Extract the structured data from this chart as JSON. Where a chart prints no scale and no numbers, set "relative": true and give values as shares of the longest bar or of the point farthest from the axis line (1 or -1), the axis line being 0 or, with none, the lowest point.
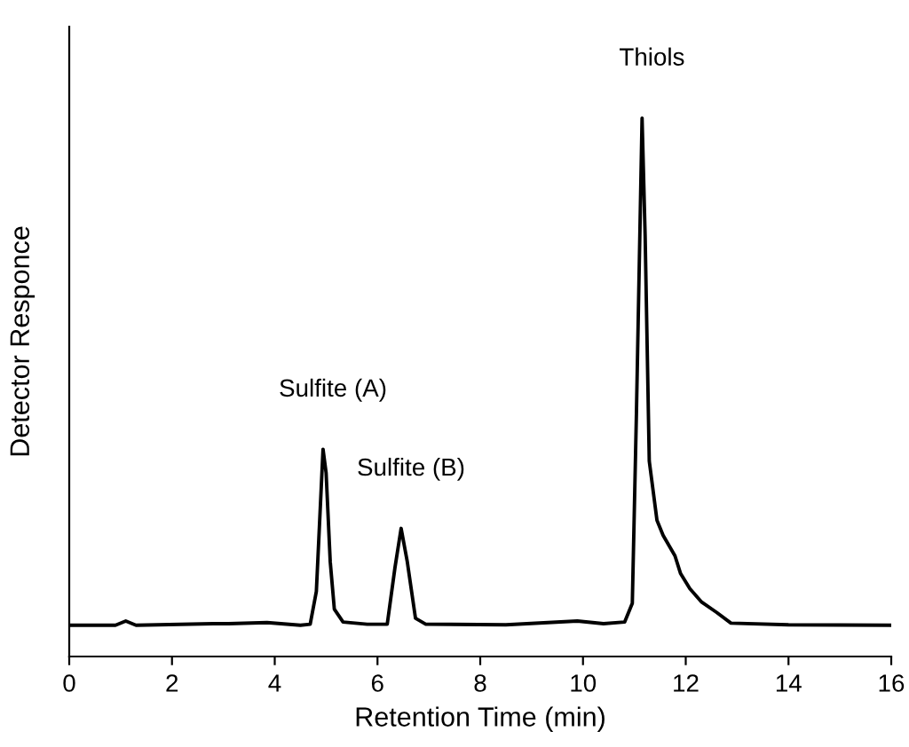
{
  "chart_data": {
    "type": "line",
    "relative": true,
    "xlabel": "Retention Time (min)",
    "ylabel": "Detector Responce",
    "xlim": [
      0,
      16
    ],
    "xticks": [
      0,
      2,
      4,
      6,
      8,
      10,
      12,
      14,
      16
    ],
    "tick_labels": "x",
    "grid": false,
    "legend": false,
    "marker": "none",
    "line_style": "solid",
    "series": [
      {
        "color": "#000000",
        "x": [
          0,
          0.9,
          1.1,
          1.3,
          2.8,
          3.1,
          3.85,
          4.5,
          4.69,
          4.81,
          4.94,
          5.0,
          5.08,
          5.16,
          5.33,
          5.8,
          6.19,
          6.34,
          6.46,
          6.58,
          6.74,
          6.94,
          8.5,
          9.89,
          10.4,
          10.81,
          10.96,
          11.04,
          11.15,
          11.21,
          11.29,
          11.44,
          11.56,
          11.79,
          11.9,
          12.08,
          12.31,
          12.6,
          12.88,
          14,
          16
        ],
        "values": [
          0.058,
          0.058,
          0.066,
          0.058,
          0.061,
          0.061,
          0.063,
          0.058,
          0.06,
          0.121,
          0.385,
          0.341,
          0.176,
          0.088,
          0.064,
          0.06,
          0.06,
          0.165,
          0.238,
          0.176,
          0.071,
          0.06,
          0.059,
          0.066,
          0.061,
          0.064,
          0.099,
          0.451,
          1.0,
          0.78,
          0.363,
          0.253,
          0.225,
          0.187,
          0.154,
          0.126,
          0.101,
          0.082,
          0.062,
          0.059,
          0.058
        ]
      }
    ],
    "annotations": [
      {
        "text": "Sulfite (A)",
        "x": 4.94,
        "y": 0.385
      },
      {
        "text": "Sulfite (B)",
        "x": 6.46,
        "y": 0.238
      },
      {
        "text": "Thiols",
        "x": 11.15,
        "y": 1.0
      }
    ]
  }
}
